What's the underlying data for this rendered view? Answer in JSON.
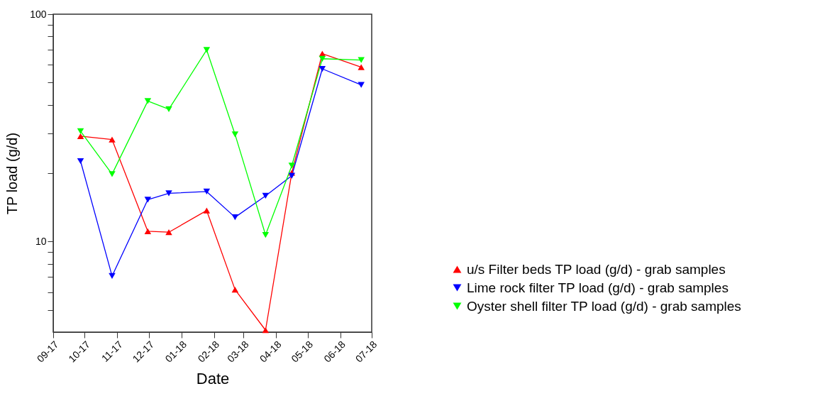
{
  "chart_data": {
    "type": "line",
    "xlabel": "Date",
    "ylabel": "TP load (g/d)",
    "x": [
      "2017-09-27",
      "2017-10-27",
      "2017-11-30",
      "2017-12-20",
      "2018-01-25",
      "2018-02-21",
      "2018-03-22",
      "2018-04-16",
      "2018-05-15",
      "2018-06-21"
    ],
    "series": [
      {
        "name": "u/s Filter beds TP load (g/d) - grab samples",
        "color": "#ff0000",
        "marker": "triangle-up",
        "values": [
          29.1,
          28.1,
          11.1,
          11.0,
          13.7,
          6.15,
          4.08,
          20.1,
          67.1,
          58.5
        ]
      },
      {
        "name": "Lime rock filter TP load (g/d) - grab samples",
        "color": "#0000ff",
        "marker": "triangle-down",
        "values": [
          22.6,
          7.06,
          15.3,
          16.3,
          16.6,
          12.8,
          15.9,
          19.5,
          57.5,
          48.9
        ]
      },
      {
        "name": "Oyster shell filter TP load (g/d) - grab samples",
        "color": "#00ff00",
        "marker": "triangle-down",
        "values": [
          30.6,
          19.8,
          41.5,
          38.2,
          69.6,
          29.6,
          10.7,
          21.6,
          63.7,
          62.9
        ]
      }
    ],
    "log": true,
    "ylim": [
      4,
      100
    ],
    "yticks": [
      {
        "value": 5,
        "label": null
      },
      {
        "value": 6,
        "label": null
      },
      {
        "value": 7,
        "label": null
      },
      {
        "value": 8,
        "label": null
      },
      {
        "value": 9,
        "label": null
      },
      10,
      {
        "value": 20,
        "label": null
      },
      {
        "value": 30,
        "label": null
      },
      {
        "value": 40,
        "label": null
      },
      {
        "value": 50,
        "label": null
      },
      {
        "value": 60,
        "label": null
      },
      {
        "value": 70,
        "label": null
      },
      {
        "value": 80,
        "label": null
      },
      {
        "value": 90,
        "label": null
      },
      100
    ],
    "xlim": [
      "2017-09-01",
      "2018-07-01"
    ],
    "xticks": [
      {
        "value": "2017-09-01",
        "label": "09-17"
      },
      {
        "value": "2017-10-01",
        "label": "10-17"
      },
      {
        "value": "2017-11-01",
        "label": "11-17"
      },
      {
        "value": "2017-12-01",
        "label": "12-17"
      },
      {
        "value": "2018-01-01",
        "label": "01-18"
      },
      {
        "value": "2018-02-01",
        "label": "02-18"
      },
      {
        "value": "2018-03-01",
        "label": "03-18"
      },
      {
        "value": "2018-04-01",
        "label": "04-18"
      },
      {
        "value": "2018-05-01",
        "label": "05-18"
      },
      {
        "value": "2018-06-01",
        "label": "06-18"
      },
      {
        "value": "2018-07-01",
        "label": "07-18"
      }
    ],
    "legend": "bottom right",
    "grid": false
  }
}
